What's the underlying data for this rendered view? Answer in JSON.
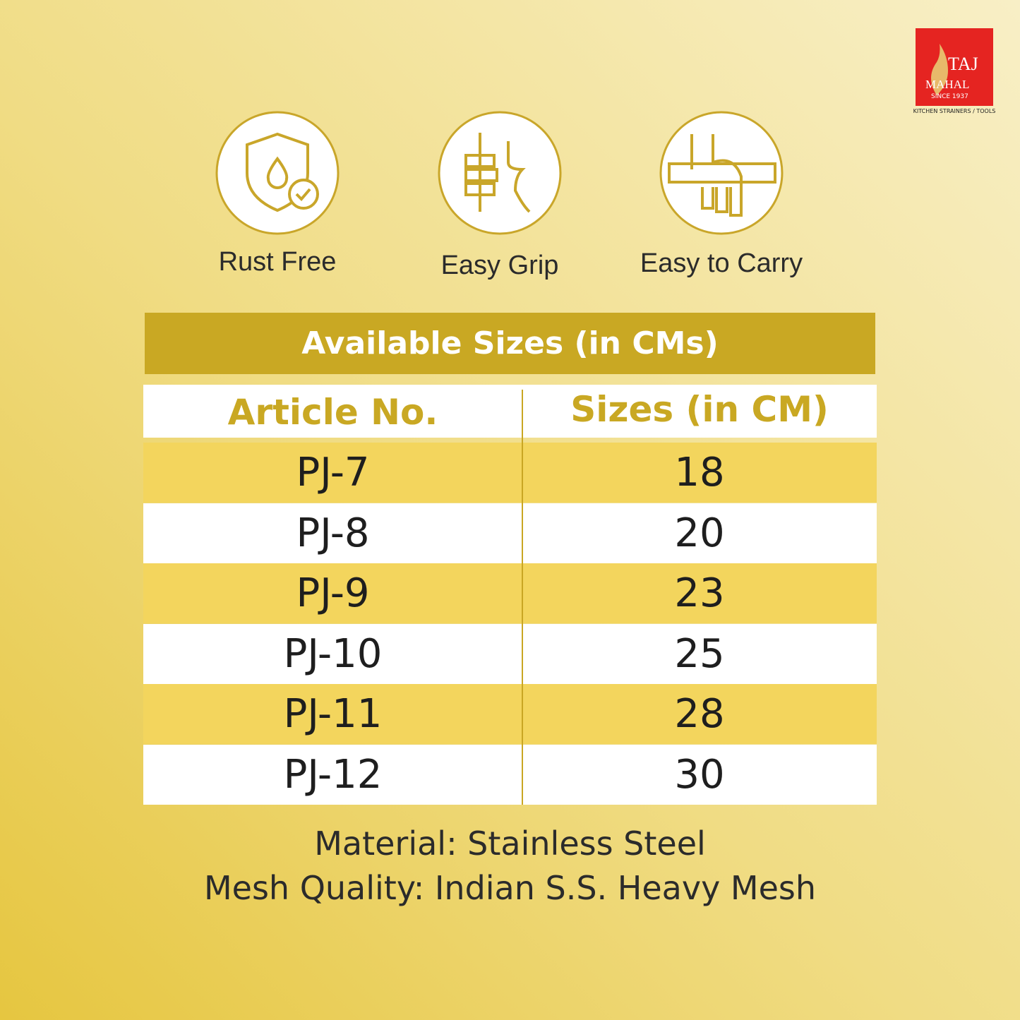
{
  "logo": {
    "brand_top": "TAJ",
    "brand_bottom": "MAHAL",
    "since": "SINCE 1937",
    "tagline": "KITCHEN STRAINERS / TOOLS"
  },
  "features": [
    {
      "label": "Rust Free"
    },
    {
      "label": "Easy Grip"
    },
    {
      "label": "Easy to Carry"
    }
  ],
  "table": {
    "title": "Available Sizes (in CMs)",
    "header": [
      "Article No.",
      "Sizes (in CM)"
    ],
    "rows": [
      [
        "PJ-7",
        18
      ],
      [
        "PJ-8",
        20
      ],
      [
        "PJ-9",
        23
      ],
      [
        "PJ-10",
        25
      ],
      [
        "PJ-11",
        28
      ],
      [
        "PJ-12",
        30
      ]
    ]
  },
  "footer": {
    "material": "Material: Stainless Steel",
    "mesh": "Mesh Quality: Indian S.S. Heavy Mesh"
  }
}
